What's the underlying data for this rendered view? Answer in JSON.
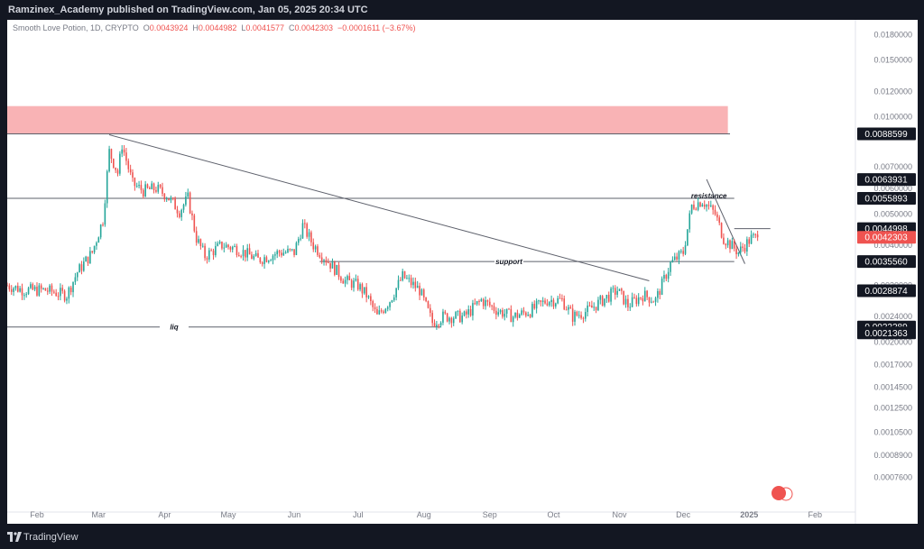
{
  "header": {
    "publisher": "Ramzinex_Academy published on TradingView.com, Jan 05, 2025 20:34 UTC"
  },
  "footer": {
    "brand": "TradingView"
  },
  "legend": {
    "symbol": "Smooth Love Potion, 1D, CRYPTO",
    "o_label": "O",
    "o": "0.0043924",
    "h_label": "H",
    "h": "0.0044982",
    "l_label": "L",
    "l": "0.0041577",
    "c_label": "C",
    "c": "0.0042303",
    "change": "−0.0001611 (−3.67%)"
  },
  "colors": {
    "up": "#26a69a",
    "down": "#ef5350",
    "zone": "#f9b3b5",
    "line": "#5d606b",
    "price_tag": "#ef5350",
    "label_tag": "#131722"
  },
  "chart_data": {
    "type": "candlestick",
    "title": "",
    "y_scale": "log",
    "ylim": [
      0.00065,
      0.019
    ],
    "y_ticks": [
      "0.0180000",
      "0.0150000",
      "0.0120000",
      "0.0100000",
      "0.0070000",
      "0.0060000",
      "0.0050000",
      "0.0040000",
      "0.0030000",
      "0.0024000",
      "0.0020000",
      "0.0017000",
      "0.0014500",
      "0.0012500",
      "0.0010500",
      "0.0008900",
      "0.0007600"
    ],
    "x_ticks": [
      "Feb",
      "Mar",
      "Apr",
      "May",
      "Jun",
      "Jul",
      "Aug",
      "Sep",
      "Oct",
      "Nov",
      "Dec",
      "2025",
      "Feb"
    ],
    "x_range": [
      "2024-01-18",
      "2025-02-20"
    ],
    "price_labels": [
      {
        "value": 0.0088599,
        "text": "0.0088599",
        "kind": "label"
      },
      {
        "value": 0.0063931,
        "text": "0.0063931",
        "kind": "label"
      },
      {
        "value": 0.0055893,
        "text": "0.0055893",
        "kind": "label"
      },
      {
        "value": 0.0044998,
        "text": "0.0044998",
        "kind": "label"
      },
      {
        "value": 0.0042303,
        "text": "0.0042303",
        "kind": "price"
      },
      {
        "value": 0.003556,
        "text": "0.0035560",
        "kind": "label"
      },
      {
        "value": 0.0028874,
        "text": "0.0028874",
        "kind": "label"
      },
      {
        "value": 0.0022289,
        "text": "0.0022289",
        "kind": "label"
      },
      {
        "value": 0.0021363,
        "text": "0.0021363",
        "kind": "label"
      }
    ],
    "zones": [
      {
        "from_date": "2024-01-18",
        "to_date": "2024-12-22",
        "low": 0.0088599,
        "high": 0.0108
      }
    ],
    "levels": [
      {
        "value": 0.0088599,
        "from_date": "2024-01-18",
        "to_date": "2024-12-23",
        "label": ""
      },
      {
        "value": 0.0055893,
        "from_date": "2024-01-18",
        "to_date": "2024-12-25",
        "label": "resistance"
      },
      {
        "value": 0.003556,
        "from_date": "2024-06-13",
        "to_date": "2024-12-25",
        "label": "support"
      },
      {
        "value": 0.0022289,
        "from_date": "2024-01-18",
        "to_date": "2024-08-09",
        "label": "liq"
      },
      {
        "value": 0.0044998,
        "from_date": "2024-12-25",
        "to_date": "2025-01-11",
        "label": ""
      }
    ],
    "trendlines": [
      {
        "from": [
          "2024-03-06",
          0.0088
        ],
        "to": [
          "2024-11-15",
          0.0031
        ]
      },
      {
        "from": [
          "2024-12-12",
          0.0064
        ],
        "to": [
          "2024-12-30",
          0.0035
        ]
      }
    ],
    "anchors": [
      [
        "2024-01-18",
        0.003
      ],
      [
        "2024-01-26",
        0.0029
      ],
      [
        "2024-02-05",
        0.0029
      ],
      [
        "2024-02-15",
        0.0028
      ],
      [
        "2024-02-20",
        0.0033
      ],
      [
        "2024-02-27",
        0.0038
      ],
      [
        "2024-03-03",
        0.0048
      ],
      [
        "2024-03-06",
        0.0078
      ],
      [
        "2024-03-10",
        0.0067
      ],
      [
        "2024-03-12",
        0.0082
      ],
      [
        "2024-03-17",
        0.0062
      ],
      [
        "2024-03-22",
        0.0059
      ],
      [
        "2024-03-28",
        0.006
      ],
      [
        "2024-04-02",
        0.0057
      ],
      [
        "2024-04-08",
        0.0051
      ],
      [
        "2024-04-12",
        0.0056
      ],
      [
        "2024-04-16",
        0.0042
      ],
      [
        "2024-04-20",
        0.0037
      ],
      [
        "2024-04-28",
        0.004
      ],
      [
        "2024-05-05",
        0.0039
      ],
      [
        "2024-05-15",
        0.0036
      ],
      [
        "2024-05-25",
        0.0038
      ],
      [
        "2024-06-01",
        0.0038
      ],
      [
        "2024-06-05",
        0.0046
      ],
      [
        "2024-06-10",
        0.004
      ],
      [
        "2024-06-18",
        0.0035
      ],
      [
        "2024-06-25",
        0.0031
      ],
      [
        "2024-07-01",
        0.003
      ],
      [
        "2024-07-05",
        0.0028
      ],
      [
        "2024-07-10",
        0.0024
      ],
      [
        "2024-07-16",
        0.0027
      ],
      [
        "2024-07-22",
        0.0032
      ],
      [
        "2024-07-30",
        0.0029
      ],
      [
        "2024-08-05",
        0.0023
      ],
      [
        "2024-08-10",
        0.0024
      ],
      [
        "2024-08-20",
        0.0024
      ],
      [
        "2024-08-28",
        0.0027
      ],
      [
        "2024-09-05",
        0.0025
      ],
      [
        "2024-09-12",
        0.0024
      ],
      [
        "2024-09-20",
        0.0025
      ],
      [
        "2024-09-28",
        0.0027
      ],
      [
        "2024-10-05",
        0.0027
      ],
      [
        "2024-10-10",
        0.0024
      ],
      [
        "2024-10-17",
        0.0025
      ],
      [
        "2024-10-24",
        0.0027
      ],
      [
        "2024-10-31",
        0.0029
      ],
      [
        "2024-11-05",
        0.0026
      ],
      [
        "2024-11-12",
        0.0028
      ],
      [
        "2024-11-18",
        0.0027
      ],
      [
        "2024-11-25",
        0.0035
      ],
      [
        "2024-12-01",
        0.0038
      ],
      [
        "2024-12-05",
        0.0053
      ],
      [
        "2024-12-10",
        0.0055
      ],
      [
        "2024-12-16",
        0.005
      ],
      [
        "2024-12-20",
        0.0042
      ],
      [
        "2024-12-27",
        0.0038
      ],
      [
        "2025-01-02",
        0.0042
      ],
      [
        "2025-01-05",
        0.0042303
      ]
    ]
  }
}
